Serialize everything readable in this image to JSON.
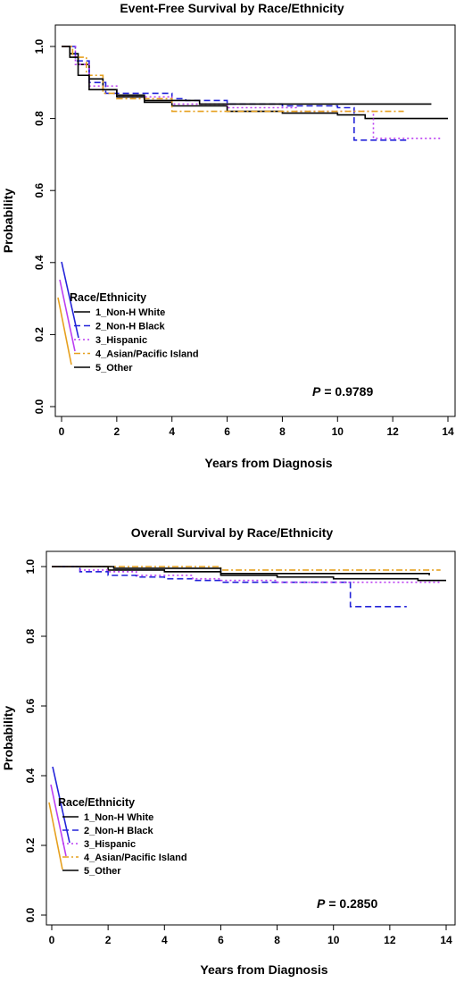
{
  "chart_data": [
    {
      "type": "line",
      "title": "Event-Free Survival by Race/Ethnicity",
      "xlabel": "Years from Diagnosis",
      "ylabel": "Probability",
      "xlim": [
        0,
        14
      ],
      "ylim": [
        0.0,
        1.0
      ],
      "xticks": [
        "0",
        "2",
        "4",
        "6",
        "8",
        "10",
        "12",
        "14"
      ],
      "yticks": [
        "0.0",
        "0.2",
        "0.4",
        "0.6",
        "0.8",
        "1.0"
      ],
      "legend_title": "Race/Ethnicity",
      "legend_position": "bottom-left",
      "p_label": "P",
      "p_value": "= 0.9789",
      "series": [
        {
          "name": "1_Non-H White",
          "color": "#000000",
          "dash": "solid",
          "steps": [
            [
              0,
              1.0
            ],
            [
              0.3,
              0.98
            ],
            [
              0.6,
              0.95
            ],
            [
              1.0,
              0.91
            ],
            [
              1.5,
              0.88
            ],
            [
              2,
              0.865
            ],
            [
              3,
              0.845
            ],
            [
              4,
              0.835
            ],
            [
              6,
              0.82
            ],
            [
              8,
              0.815
            ],
            [
              10,
              0.81
            ],
            [
              11,
              0.8
            ],
            [
              14,
              0.8
            ]
          ]
        },
        {
          "name": "2_Non-H Black",
          "color": "#2323d9",
          "dash": "dashed",
          "steps": [
            [
              0,
              1.0
            ],
            [
              0.5,
              0.96
            ],
            [
              1.0,
              0.9
            ],
            [
              1.6,
              0.87
            ],
            [
              4,
              0.855
            ],
            [
              4.5,
              0.85
            ],
            [
              6,
              0.84
            ],
            [
              8,
              0.835
            ],
            [
              10,
              0.83
            ],
            [
              10.6,
              0.74
            ],
            [
              12.6,
              0.74
            ]
          ]
        },
        {
          "name": "3_Hispanic",
          "color": "#bb3ef2",
          "dash": "dotted",
          "steps": [
            [
              0,
              1.0
            ],
            [
              0.5,
              0.95
            ],
            [
              1.0,
              0.89
            ],
            [
              2,
              0.86
            ],
            [
              4,
              0.84
            ],
            [
              6,
              0.83
            ],
            [
              8.5,
              0.82
            ],
            [
              11.3,
              0.745
            ],
            [
              13.8,
              0.745
            ]
          ]
        },
        {
          "name": "4_Asian/Pacific Island",
          "color": "#e6a01e",
          "dash": "dashdot",
          "steps": [
            [
              0,
              1.0
            ],
            [
              0.4,
              0.97
            ],
            [
              0.9,
              0.92
            ],
            [
              1.5,
              0.87
            ],
            [
              2,
              0.855
            ],
            [
              4,
              0.82
            ],
            [
              6,
              0.82
            ],
            [
              8,
              0.82
            ],
            [
              12.4,
              0.82
            ]
          ]
        },
        {
          "name": "5_Other",
          "color": "#000000",
          "dash": "solid",
          "steps": [
            [
              0,
              1.0
            ],
            [
              0.3,
              0.97
            ],
            [
              0.6,
              0.92
            ],
            [
              1.0,
              0.88
            ],
            [
              2,
              0.86
            ],
            [
              3,
              0.85
            ],
            [
              5,
              0.84
            ],
            [
              8,
              0.84
            ],
            [
              13.4,
              0.84
            ]
          ]
        }
      ]
    },
    {
      "type": "line",
      "title": "Overall Survival by Race/Ethnicity",
      "xlabel": "Years from Diagnosis",
      "ylabel": "Probability",
      "xlim": [
        0,
        14
      ],
      "ylim": [
        0.0,
        1.0
      ],
      "xticks": [
        "0",
        "2",
        "4",
        "6",
        "8",
        "10",
        "12",
        "14"
      ],
      "yticks": [
        "0.0",
        "0.2",
        "0.4",
        "0.6",
        "0.8",
        "1.0"
      ],
      "legend_title": "Race/Ethnicity",
      "legend_position": "bottom-left",
      "p_label": "P",
      "p_value": "= 0.2850",
      "series": [
        {
          "name": "1_Non-H White",
          "color": "#000000",
          "dash": "solid",
          "steps": [
            [
              0,
              1.0
            ],
            [
              2,
              0.99
            ],
            [
              4,
              0.985
            ],
            [
              6,
              0.975
            ],
            [
              8,
              0.97
            ],
            [
              10,
              0.965
            ],
            [
              13,
              0.96
            ],
            [
              14,
              0.96
            ]
          ]
        },
        {
          "name": "2_Non-H Black",
          "color": "#2323d9",
          "dash": "dashed",
          "steps": [
            [
              0,
              1.0
            ],
            [
              1,
              0.985
            ],
            [
              2,
              0.975
            ],
            [
              3,
              0.97
            ],
            [
              4,
              0.965
            ],
            [
              5,
              0.96
            ],
            [
              6,
              0.955
            ],
            [
              10.6,
              0.955
            ],
            [
              10.6,
              0.885
            ],
            [
              12.6,
              0.885
            ]
          ]
        },
        {
          "name": "3_Hispanic",
          "color": "#bb3ef2",
          "dash": "dotted",
          "steps": [
            [
              0,
              1.0
            ],
            [
              1,
              0.99
            ],
            [
              2,
              0.985
            ],
            [
              3,
              0.975
            ],
            [
              5,
              0.965
            ],
            [
              6,
              0.96
            ],
            [
              8,
              0.955
            ],
            [
              11.3,
              0.955
            ],
            [
              13.8,
              0.955
            ]
          ]
        },
        {
          "name": "4_Asian/Pacific Island",
          "color": "#e6a01e",
          "dash": "dashdot",
          "steps": [
            [
              0,
              1.0
            ],
            [
              6,
              0.99
            ],
            [
              13.8,
              0.99
            ]
          ]
        },
        {
          "name": "5_Other",
          "color": "#000000",
          "dash": "solid",
          "steps": [
            [
              0,
              1.0
            ],
            [
              2.2,
              0.995
            ],
            [
              6,
              0.98
            ],
            [
              13.4,
              0.975
            ]
          ]
        }
      ]
    }
  ]
}
